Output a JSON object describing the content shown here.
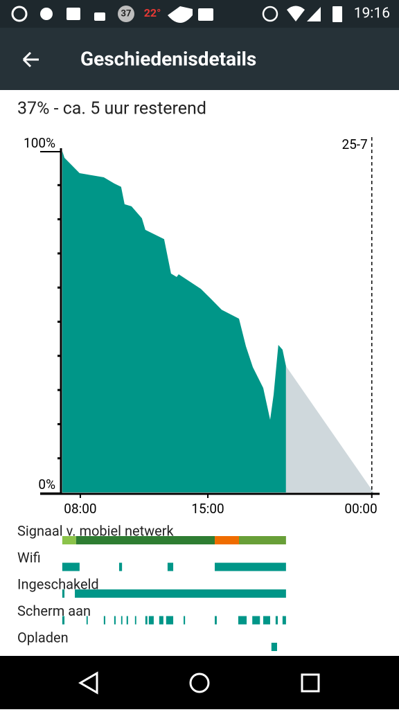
{
  "status_bar": {
    "badge": "37",
    "temperature": "22°",
    "time": "19:16"
  },
  "app_bar": {
    "title": "Geschiedenisdetails"
  },
  "summary": "37% - ca. 5 uur resterend",
  "chart_data": {
    "type": "area",
    "series": [
      {
        "color": "#009688",
        "x": [
          7.01,
          7.13,
          7.96,
          9.29,
          9.86,
          10.24,
          10.43,
          10.81,
          11.38,
          11.57,
          12.6,
          12.98,
          13.29,
          13.4,
          14.62,
          15.19,
          15.76,
          16.71,
          17.09,
          17.47,
          18.04,
          18.42,
          18.61,
          18.87,
          19.1,
          19.29
        ],
        "values": [
          100,
          98,
          93.5,
          92.3,
          90.5,
          89.5,
          84.4,
          83.8,
          80.3,
          76.9,
          74.2,
          64.1,
          63.1,
          63.9,
          59.6,
          56.6,
          53.5,
          50.9,
          42.8,
          36.7,
          30.6,
          21.3,
          28.6,
          43.2,
          41.8,
          37
        ]
      },
      {
        "color": "#cfd8dc",
        "x": [
          19.29,
          24.1
        ],
        "values": [
          37,
          0
        ]
      }
    ],
    "xlim": [
      6.9,
      24.2
    ],
    "ylim": [
      0,
      100
    ],
    "xticks": [
      {
        "value": 8,
        "label": "08:00"
      },
      {
        "value": 15,
        "label": "15:00"
      },
      {
        "value": 24,
        "label": "00:00"
      }
    ],
    "yticks": [
      {
        "value": 0,
        "label": "0%"
      },
      {
        "value": 100,
        "label": "100%"
      }
    ],
    "date_marker": {
      "value": 24,
      "label": "25-7"
    }
  },
  "tracks": [
    {
      "label": "Signaal v. mobiel netwerk",
      "segments": [
        {
          "start": 7.01,
          "end": 7.77,
          "color": "#8bc34a"
        },
        {
          "start": 7.77,
          "end": 15.38,
          "color": "#2e7d32"
        },
        {
          "start": 15.38,
          "end": 16.71,
          "color": "#ef6c00"
        },
        {
          "start": 16.71,
          "end": 19.29,
          "color": "#689f38"
        }
      ]
    },
    {
      "label": "Wifi",
      "segments": [
        {
          "start": 7.01,
          "end": 7.96,
          "color": "#009688"
        },
        {
          "start": 10.13,
          "end": 10.29,
          "color": "#009688"
        },
        {
          "start": 12.79,
          "end": 13.1,
          "color": "#009688"
        },
        {
          "start": 15.38,
          "end": 19.29,
          "color": "#009688"
        }
      ]
    },
    {
      "label": "Ingeschakeld",
      "segments": [
        {
          "start": 7.01,
          "end": 7.13,
          "color": "#009688"
        },
        {
          "start": 7.7,
          "end": 19.29,
          "color": "#009688"
        }
      ]
    },
    {
      "label": "Scherm aan",
      "segments": [
        {
          "start": 7.01,
          "end": 7.13,
          "color": "#009688"
        },
        {
          "start": 8.34,
          "end": 8.41,
          "color": "#009688"
        },
        {
          "start": 9.29,
          "end": 9.37,
          "color": "#009688"
        },
        {
          "start": 9.86,
          "end": 9.94,
          "color": "#009688"
        },
        {
          "start": 10.24,
          "end": 10.31,
          "color": "#009688"
        },
        {
          "start": 10.54,
          "end": 10.62,
          "color": "#009688"
        },
        {
          "start": 11.0,
          "end": 11.07,
          "color": "#009688"
        },
        {
          "start": 11.57,
          "end": 11.68,
          "color": "#009688"
        },
        {
          "start": 11.76,
          "end": 12.03,
          "color": "#009688"
        },
        {
          "start": 12.33,
          "end": 12.56,
          "color": "#009688"
        },
        {
          "start": 12.71,
          "end": 13.1,
          "color": "#009688"
        },
        {
          "start": 13.67,
          "end": 13.75,
          "color": "#009688"
        },
        {
          "start": 15.38,
          "end": 15.49,
          "color": "#009688"
        },
        {
          "start": 16.67,
          "end": 17.13,
          "color": "#009688"
        },
        {
          "start": 17.44,
          "end": 17.86,
          "color": "#009688"
        },
        {
          "start": 18.04,
          "end": 18.42,
          "color": "#009688"
        },
        {
          "start": 18.72,
          "end": 18.84,
          "color": "#009688"
        },
        {
          "start": 19.1,
          "end": 19.29,
          "color": "#009688"
        }
      ]
    },
    {
      "label": "Opladen",
      "segments": [
        {
          "start": 18.49,
          "end": 18.8,
          "color": "#009688"
        }
      ]
    }
  ]
}
